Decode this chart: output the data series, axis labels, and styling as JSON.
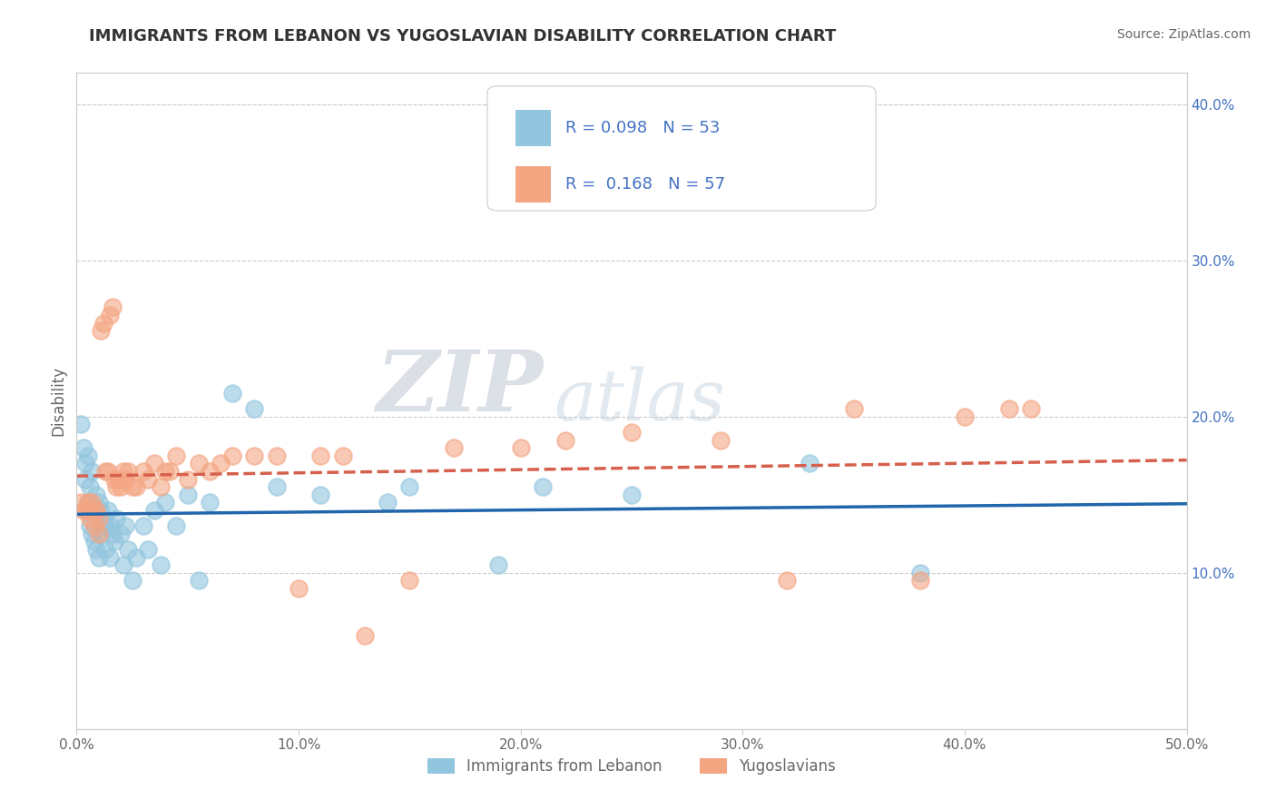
{
  "title": "IMMIGRANTS FROM LEBANON VS YUGOSLAVIAN DISABILITY CORRELATION CHART",
  "source": "Source: ZipAtlas.com",
  "ylabel": "Disability",
  "xlim": [
    0.0,
    0.5
  ],
  "ylim": [
    0.0,
    0.42
  ],
  "xticks": [
    0.0,
    0.1,
    0.2,
    0.3,
    0.4,
    0.5
  ],
  "xticklabels": [
    "0.0%",
    "10.0%",
    "20.0%",
    "30.0%",
    "40.0%",
    "50.0%"
  ],
  "yticks_right": [
    0.1,
    0.2,
    0.3,
    0.4
  ],
  "yticklabels_right": [
    "10.0%",
    "20.0%",
    "30.0%",
    "40.0%"
  ],
  "blue_color": "#92c5de",
  "pink_color": "#f4a582",
  "blue_line_color": "#2166ac",
  "pink_line_color": "#d6604d",
  "watermark_zip": "ZIP",
  "watermark_atlas": "atlas",
  "blue_scatter_x": [
    0.002,
    0.003,
    0.004,
    0.004,
    0.005,
    0.005,
    0.006,
    0.006,
    0.007,
    0.007,
    0.008,
    0.008,
    0.009,
    0.009,
    0.01,
    0.01,
    0.011,
    0.011,
    0.012,
    0.013,
    0.013,
    0.014,
    0.015,
    0.015,
    0.016,
    0.017,
    0.018,
    0.02,
    0.021,
    0.022,
    0.023,
    0.025,
    0.027,
    0.03,
    0.032,
    0.035,
    0.038,
    0.04,
    0.045,
    0.05,
    0.055,
    0.06,
    0.07,
    0.08,
    0.09,
    0.11,
    0.14,
    0.15,
    0.19,
    0.21,
    0.25,
    0.33,
    0.38
  ],
  "blue_scatter_y": [
    0.195,
    0.18,
    0.17,
    0.16,
    0.175,
    0.145,
    0.155,
    0.13,
    0.165,
    0.125,
    0.14,
    0.12,
    0.15,
    0.115,
    0.145,
    0.11,
    0.14,
    0.125,
    0.135,
    0.13,
    0.115,
    0.14,
    0.13,
    0.11,
    0.125,
    0.12,
    0.135,
    0.125,
    0.105,
    0.13,
    0.115,
    0.095,
    0.11,
    0.13,
    0.115,
    0.14,
    0.105,
    0.145,
    0.13,
    0.15,
    0.095,
    0.145,
    0.215,
    0.205,
    0.155,
    0.15,
    0.145,
    0.155,
    0.105,
    0.155,
    0.15,
    0.17,
    0.1
  ],
  "pink_scatter_x": [
    0.002,
    0.003,
    0.004,
    0.005,
    0.006,
    0.006,
    0.007,
    0.008,
    0.008,
    0.009,
    0.01,
    0.01,
    0.011,
    0.012,
    0.013,
    0.014,
    0.015,
    0.016,
    0.017,
    0.018,
    0.019,
    0.02,
    0.021,
    0.022,
    0.023,
    0.025,
    0.027,
    0.03,
    0.032,
    0.035,
    0.038,
    0.04,
    0.042,
    0.045,
    0.05,
    0.055,
    0.06,
    0.065,
    0.07,
    0.08,
    0.09,
    0.1,
    0.11,
    0.12,
    0.13,
    0.15,
    0.17,
    0.2,
    0.22,
    0.25,
    0.29,
    0.32,
    0.35,
    0.38,
    0.4,
    0.42,
    0.43
  ],
  "pink_scatter_y": [
    0.145,
    0.14,
    0.14,
    0.145,
    0.14,
    0.135,
    0.145,
    0.14,
    0.13,
    0.14,
    0.135,
    0.125,
    0.255,
    0.26,
    0.165,
    0.165,
    0.265,
    0.27,
    0.16,
    0.155,
    0.16,
    0.155,
    0.165,
    0.16,
    0.165,
    0.155,
    0.155,
    0.165,
    0.16,
    0.17,
    0.155,
    0.165,
    0.165,
    0.175,
    0.16,
    0.17,
    0.165,
    0.17,
    0.175,
    0.175,
    0.175,
    0.09,
    0.175,
    0.175,
    0.06,
    0.095,
    0.18,
    0.18,
    0.185,
    0.19,
    0.185,
    0.095,
    0.205,
    0.095,
    0.2,
    0.205,
    0.205
  ],
  "grid_color": "#cccccc",
  "background_color": "#ffffff",
  "title_color": "#333333",
  "axis_color": "#666666",
  "right_axis_color": "#4472c4"
}
